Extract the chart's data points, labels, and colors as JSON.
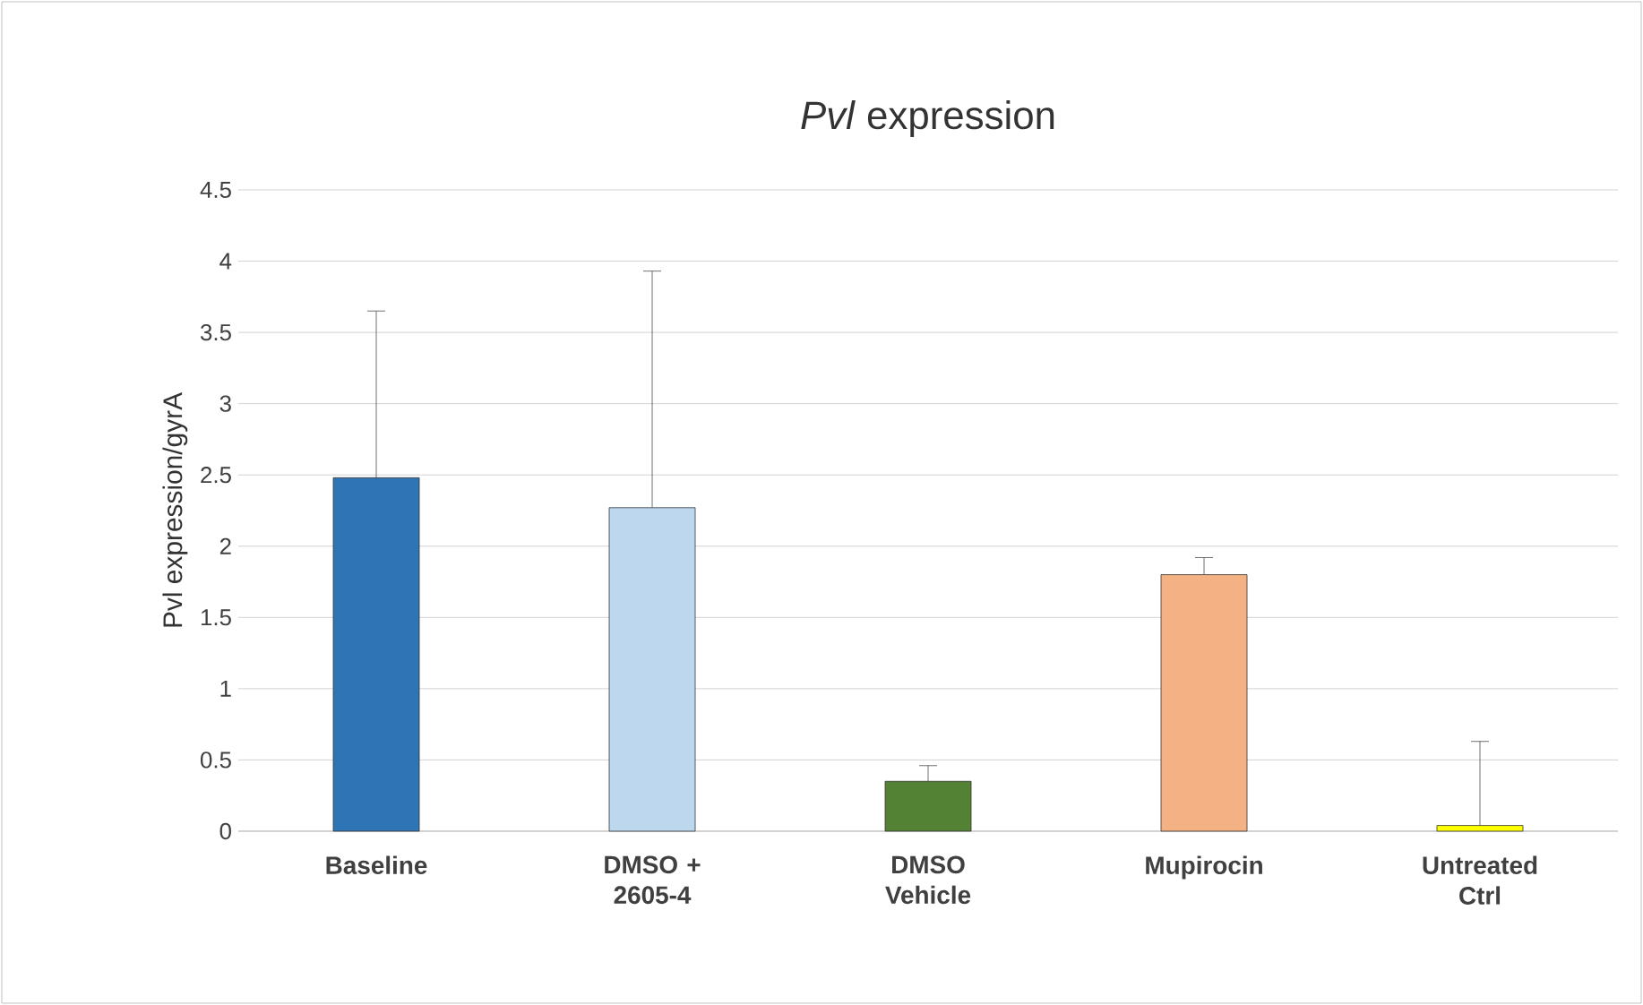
{
  "chart_data": {
    "type": "bar",
    "title": "*Pvl* expression",
    "ylabel": "Pvl expression/gyrA",
    "categories": [
      "Baseline",
      "DMSO + 2605-4",
      "DMSO Vehicle",
      "Mupirocin",
      "Untreated Ctrl"
    ],
    "values": [
      2.48,
      2.27,
      0.35,
      1.8,
      0.04
    ],
    "errors": [
      [
        2.48,
        3.65
      ],
      [
        2.27,
        3.93
      ],
      [
        0.35,
        0.46
      ],
      [
        1.8,
        1.92
      ],
      [
        0.04,
        0.63
      ]
    ],
    "colors": [
      "#2e75b6",
      "#bdd7ee",
      "#548235",
      "#f4b183",
      "#ffff00"
    ],
    "ylim": [
      0,
      4.5
    ],
    "yticks": [
      0,
      0.5,
      1,
      1.5,
      2,
      2.5,
      3,
      3.5,
      4,
      4.5
    ],
    "grid": "y"
  }
}
